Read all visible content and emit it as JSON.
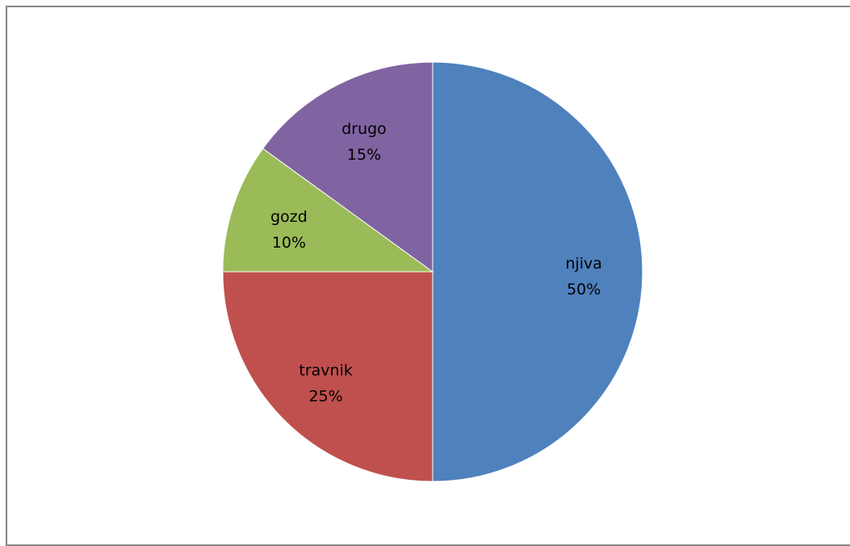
{
  "chart_data": {
    "type": "pie",
    "title": "",
    "categories": [
      "njiva",
      "travnik",
      "gozd",
      "drugo"
    ],
    "values": [
      50,
      25,
      10,
      15
    ],
    "data_labels": [
      "50%",
      "25%",
      "10%",
      "15%"
    ],
    "start": "top",
    "direction": "clockwise",
    "legend": "none",
    "colors": {
      "njiva": "#4F81BD",
      "travnik": "#C0504D",
      "gozd": "#9BBB59",
      "drugo": "#8064A2"
    }
  }
}
